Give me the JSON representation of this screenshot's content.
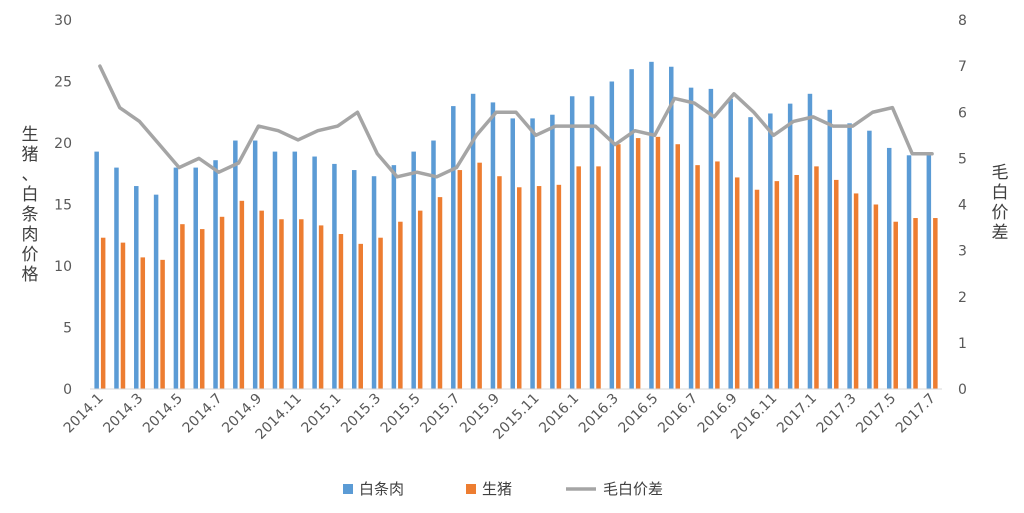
{
  "chart_data": {
    "type": "bar",
    "title": "",
    "ylabel_left": "生猪、白条肉价格",
    "ylabel_right": "毛白价差",
    "ylim_left": [
      0,
      30
    ],
    "yticks_left": [
      0,
      5,
      10,
      15,
      20,
      25,
      30
    ],
    "ylim_right": [
      0,
      8
    ],
    "yticks_right": [
      0,
      1,
      2,
      3,
      4,
      5,
      6,
      7,
      8
    ],
    "legend_position": "bottom",
    "grid": false,
    "colors": {
      "white_meat": "#5b9bd5",
      "live_hog": "#ed7d31",
      "spread": "#a5a5a5"
    },
    "categories": [
      "2014.1",
      "2014.2",
      "2014.3",
      "2014.4",
      "2014.5",
      "2014.6",
      "2014.7",
      "2014.8",
      "2014.9",
      "2014.10",
      "2014.11",
      "2014.12",
      "2015.1",
      "2015.2",
      "2015.3",
      "2015.4",
      "2015.5",
      "2015.6",
      "2015.7",
      "2015.8",
      "2015.9",
      "2015.10",
      "2015.11",
      "2015.12",
      "2016.1",
      "2016.2",
      "2016.3",
      "2016.4",
      "2016.5",
      "2016.6",
      "2016.7",
      "2016.8",
      "2016.9",
      "2016.10",
      "2016.11",
      "2016.12",
      "2017.1",
      "2017.2",
      "2017.3",
      "2017.4",
      "2017.5",
      "2017.6",
      "2017.7"
    ],
    "xtick_labels": [
      "2014.1",
      "2014.3",
      "2014.5",
      "2014.7",
      "2014.9",
      "2014.11",
      "2015.1",
      "2015.3",
      "2015.5",
      "2015.7",
      "2015.9",
      "2015.11",
      "2016.1",
      "2016.3",
      "2016.5",
      "2016.7",
      "2016.9",
      "2016.11",
      "2017.1",
      "2017.3",
      "2017.5",
      "2017.7"
    ],
    "series": [
      {
        "name": "白条肉",
        "type": "bar",
        "axis": "left",
        "values": [
          19.3,
          18.0,
          16.5,
          15.8,
          18.0,
          18.0,
          18.6,
          20.2,
          20.2,
          19.3,
          19.3,
          18.9,
          18.3,
          17.8,
          17.3,
          18.2,
          19.3,
          20.2,
          23.0,
          24.0,
          23.3,
          22.0,
          22.0,
          22.3,
          23.8,
          23.8,
          25.0,
          26.0,
          26.6,
          26.2,
          24.5,
          24.4,
          23.6,
          22.1,
          22.4,
          23.2,
          24.0,
          22.7,
          21.6,
          21.0,
          19.6,
          19.0,
          19.0
        ]
      },
      {
        "name": "生猪",
        "type": "bar",
        "axis": "left",
        "values": [
          12.3,
          11.9,
          10.7,
          10.5,
          13.4,
          13.0,
          14.0,
          15.3,
          14.5,
          13.8,
          13.8,
          13.3,
          12.6,
          11.8,
          12.3,
          13.6,
          14.5,
          15.6,
          17.8,
          18.4,
          17.3,
          16.4,
          16.5,
          16.6,
          18.1,
          18.1,
          19.9,
          20.4,
          20.5,
          19.9,
          18.2,
          18.5,
          17.2,
          16.2,
          16.9,
          17.4,
          18.1,
          17.0,
          15.9,
          15.0,
          13.6,
          13.9,
          13.9
        ]
      },
      {
        "name": "毛白价差",
        "type": "line",
        "axis": "right",
        "values": [
          7.0,
          6.1,
          5.8,
          5.3,
          4.8,
          5.0,
          4.7,
          4.9,
          5.7,
          5.6,
          5.4,
          5.6,
          5.7,
          6.0,
          5.1,
          4.6,
          4.7,
          4.6,
          4.8,
          5.5,
          6.0,
          6.0,
          5.5,
          5.7,
          5.7,
          5.7,
          5.3,
          5.6,
          5.5,
          6.3,
          6.2,
          5.9,
          6.4,
          6.0,
          5.5,
          5.8,
          5.9,
          5.7,
          5.7,
          6.0,
          6.1,
          5.1,
          5.1
        ]
      }
    ]
  }
}
